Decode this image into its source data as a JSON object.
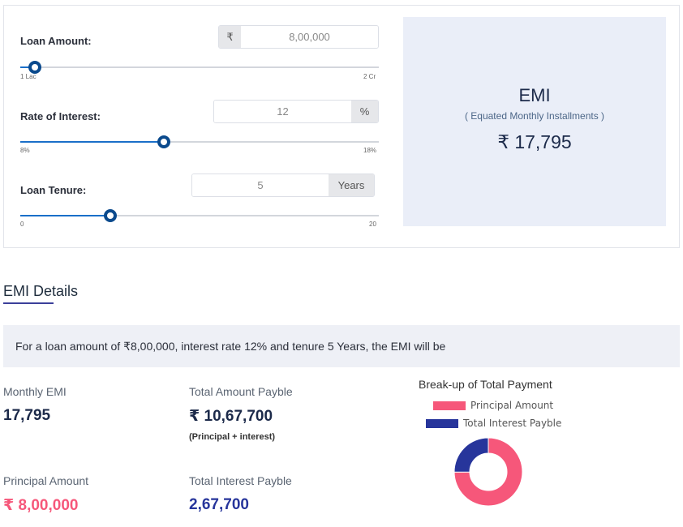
{
  "calculator": {
    "loan_amount": {
      "label": "Loan Amount:",
      "prefix": "₹",
      "value": "8,00,000",
      "min_label": "1 Lac",
      "max_label": "2 Cr",
      "slider_fraction": 0.04
    },
    "rate": {
      "label": "Rate of Interest:",
      "value": "12",
      "suffix": "%",
      "min_label": "8%",
      "max_label": "18%",
      "slider_fraction": 0.4
    },
    "tenure": {
      "label": "Loan Tenure:",
      "value": "5",
      "suffix": "Years",
      "min_label": "0",
      "max_label": "20",
      "slider_fraction": 0.25
    },
    "result": {
      "title": "EMI",
      "subtitle": "( Equated Monthly Installments )",
      "amount": "₹ 17,795"
    }
  },
  "details": {
    "section_title": "EMI Details",
    "summary": "For a loan amount of ₹8,00,000, interest rate 12% and tenure 5 Years, the EMI will be",
    "monthly_emi": {
      "label": "Monthly EMI",
      "value": "17,795"
    },
    "total_amount": {
      "label": "Total Amount Payble",
      "value": "₹ 10,67,700",
      "note": "(Principal + interest)"
    },
    "principal": {
      "label": "Principal Amount",
      "value": "₹ 8,00,000"
    },
    "interest": {
      "label": "Total Interest Payble",
      "value": "2,67,700"
    }
  },
  "colors": {
    "principal": "#f6577a",
    "interest": "#27359b",
    "slider_fill": "#1a6fc9",
    "slider_thumb": "#0b4a8d"
  },
  "chart_data": {
    "type": "pie",
    "title": "Break-up of Total Payment",
    "categories": [
      "Principal Amount",
      "Total Interest Payble"
    ],
    "values": [
      800000,
      267700
    ]
  }
}
